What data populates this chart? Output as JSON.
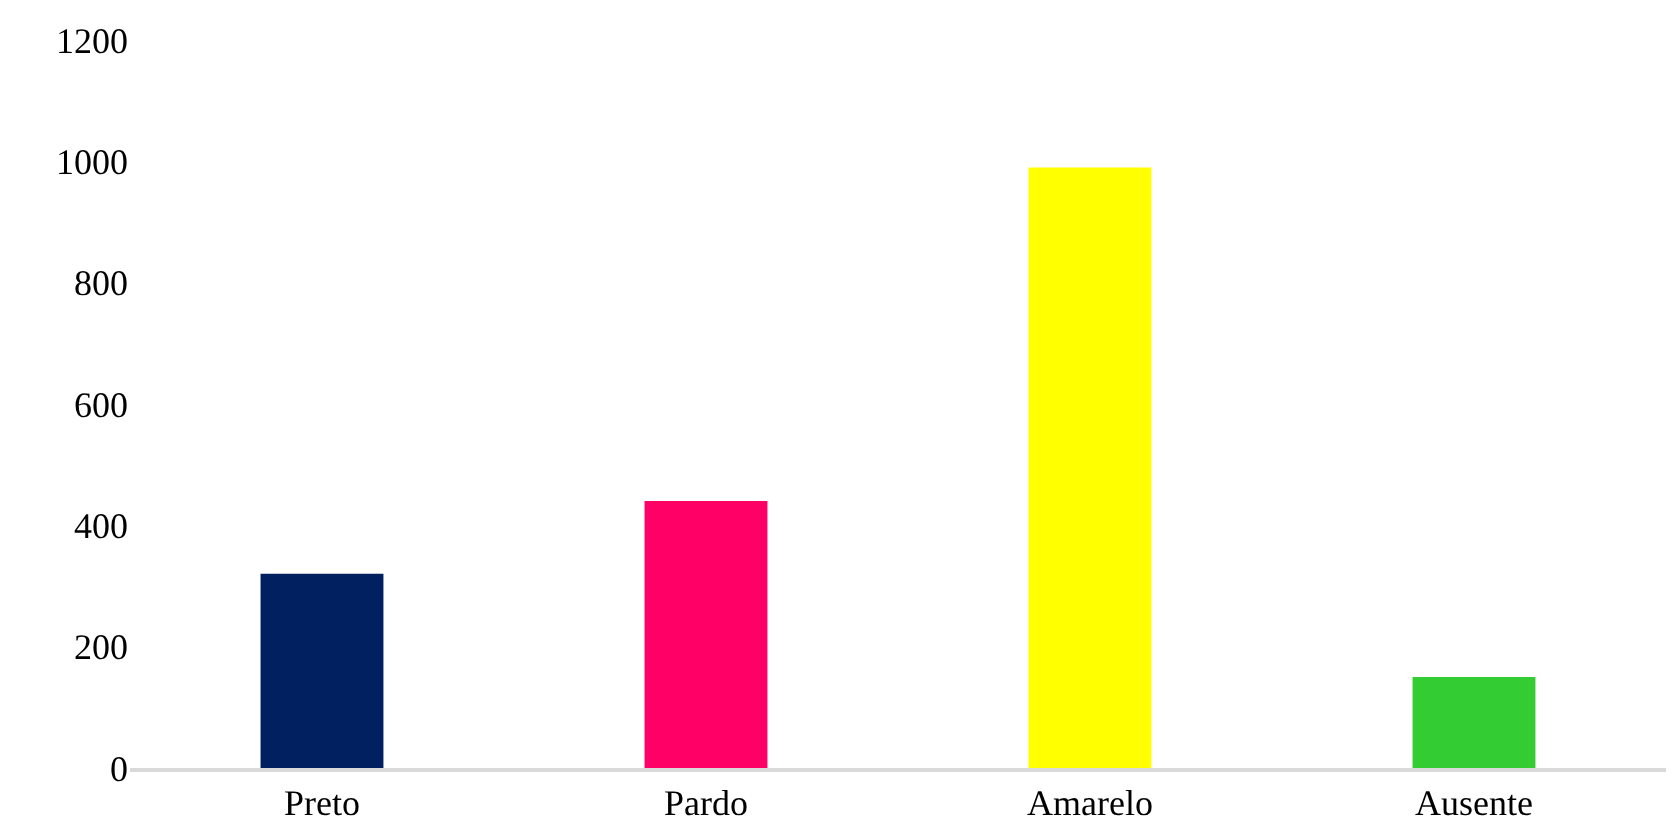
{
  "chart_data": {
    "type": "bar",
    "categories": [
      "Preto",
      "Pardo",
      "Amarelo",
      "Ausente"
    ],
    "values": [
      320,
      440,
      990,
      150
    ],
    "colors": [
      "#002060",
      "#ff0066",
      "#ffff00",
      "#33cc33"
    ],
    "ylim": [
      0,
      1200
    ],
    "yticks": [
      0,
      200,
      400,
      600,
      800,
      1000,
      1200
    ],
    "legend": false
  }
}
